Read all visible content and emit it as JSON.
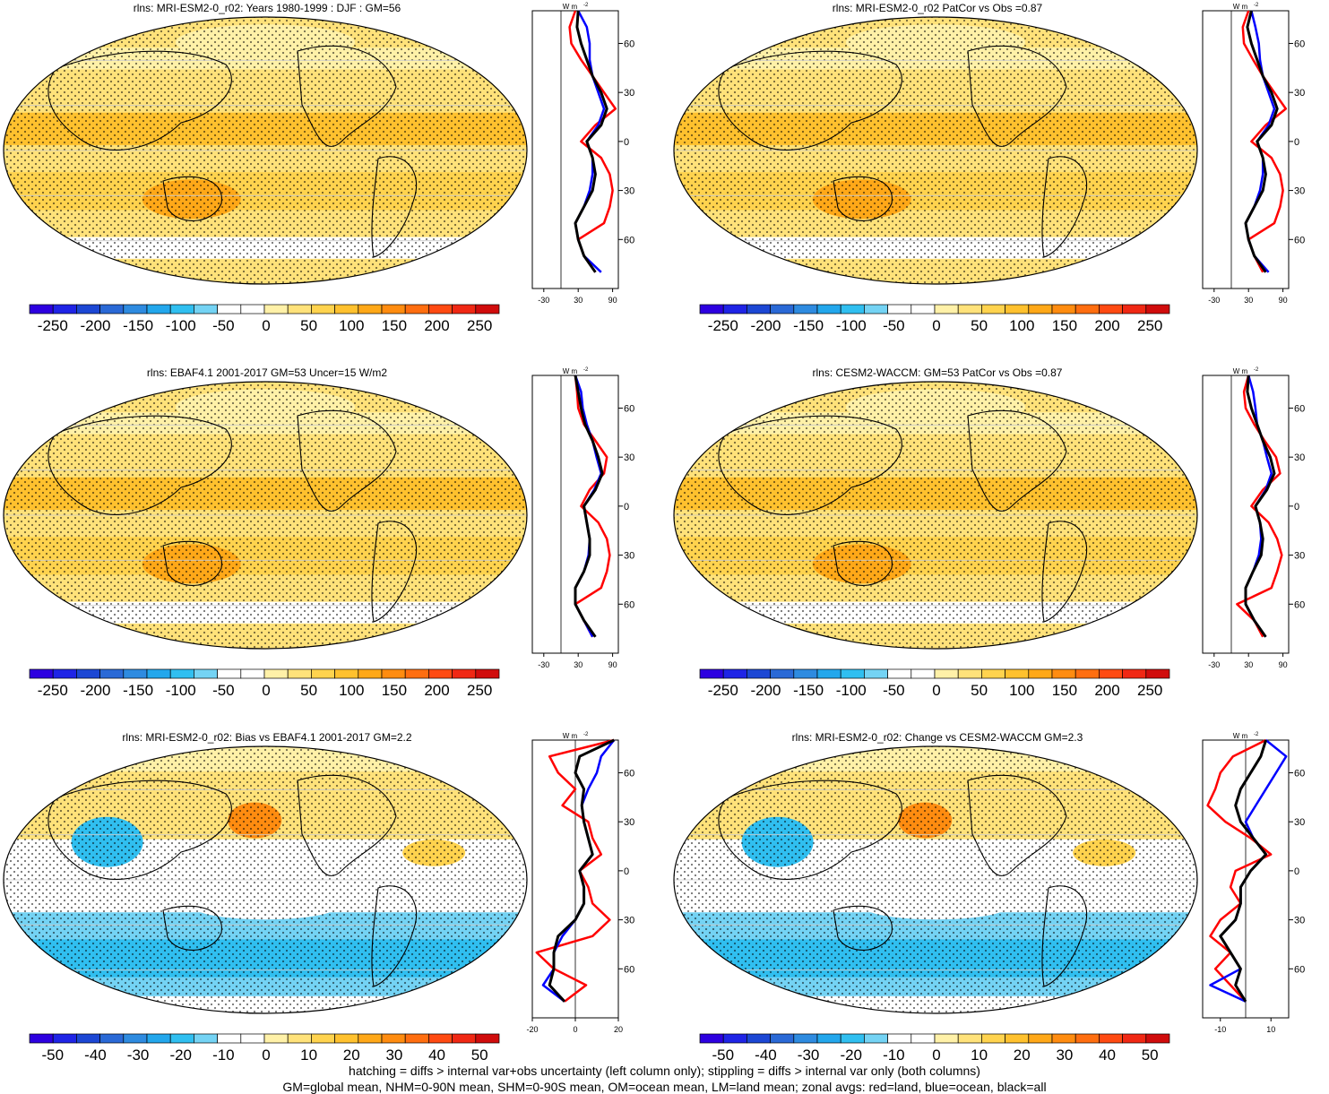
{
  "panels": [
    {
      "title": "rlns: MRI-ESM2-0_r02: Years 1980-1999 : DJF : GM=56",
      "scheme": "abs",
      "zonal_ticks": [
        "-30",
        "30",
        "90"
      ],
      "zonal_range": [
        -50,
        100
      ]
    },
    {
      "title": "rlns: MRI-ESM2-0_r02 PatCor vs Obs =0.87",
      "scheme": "abs",
      "zonal_ticks": [
        "-30",
        "30",
        "90"
      ],
      "zonal_range": [
        -50,
        100
      ]
    },
    {
      "title": "rlns: EBAF4.1 2001-2017 GM=53 Uncer=15 W/m2",
      "scheme": "abs",
      "zonal_ticks": [
        "-30",
        "30",
        "90"
      ],
      "zonal_range": [
        -50,
        100
      ]
    },
    {
      "title": "rlns: CESM2-WACCM: GM=53 PatCor vs Obs =0.87",
      "scheme": "abs",
      "zonal_ticks": [
        "-30",
        "30",
        "90"
      ],
      "zonal_range": [
        -50,
        100
      ]
    },
    {
      "title": "rlns: MRI-ESM2-0_r02: Bias vs EBAF4.1 2001-2017 GM=2.2",
      "scheme": "diff",
      "zonal_ticks": [
        "-20",
        "0",
        "20"
      ],
      "zonal_range": [
        -20,
        20
      ]
    },
    {
      "title": "rlns: MRI-ESM2-0_r02: Change vs CESM2-WACCM GM=2.3",
      "scheme": "diff",
      "zonal_ticks": [
        "-10",
        "10"
      ],
      "zonal_range": [
        -17,
        17
      ]
    }
  ],
  "zonal_units": "W m",
  "zonal_units_sup": "-2",
  "lat_labels": [
    "60N",
    "30N",
    "0",
    "30S",
    "60S"
  ],
  "colorbars": {
    "abs": {
      "labels": [
        "-250",
        "-200",
        "-150",
        "-100",
        "-50",
        "0",
        "50",
        "100",
        "150",
        "200",
        "250"
      ]
    },
    "diff": {
      "labels": [
        "-50",
        "-40",
        "-30",
        "-20",
        "-10",
        "0",
        "10",
        "20",
        "30",
        "40",
        "50"
      ]
    }
  },
  "palette": [
    "#2d00e0",
    "#1f24e6",
    "#1c47d4",
    "#2a69d6",
    "#2e8be0",
    "#23a7ec",
    "#30bff0",
    "#74d3f4",
    "#ffffff",
    "#ffffff",
    "#fff1a8",
    "#ffe27a",
    "#ffd34e",
    "#ffc12e",
    "#ffa818",
    "#ff8c10",
    "#ff6e10",
    "#ff4a12",
    "#f02814",
    "#d00c0c"
  ],
  "zonal_line_colors": {
    "land": "#ff0000",
    "ocean": "#0000ff",
    "all": "#000000"
  },
  "footer": {
    "line1": "hatching = diffs > internal var+obs uncertainty (left column only); stippling = diffs > internal var only (both columns)",
    "line2": "GM=global mean, NHM=0-90N mean, SHM=0-90S mean, OM=ocean mean, LM=land mean; zonal avgs: red=land, blue=ocean, black=all"
  },
  "chart_data": [
    {
      "type": "heatmap",
      "title": "rlns: MRI-ESM2-0_r02: Years 1980-1999 : DJF : GM=56",
      "colorbar_range": [
        -275,
        275
      ],
      "zonal_profile_lat": [
        80,
        70,
        60,
        50,
        40,
        30,
        20,
        10,
        0,
        -10,
        -20,
        -30,
        -40,
        -50,
        -60,
        -70,
        -80
      ],
      "zonal_all": [
        30,
        28,
        35,
        45,
        55,
        70,
        80,
        70,
        45,
        55,
        60,
        55,
        40,
        25,
        30,
        40,
        60
      ],
      "zonal_ocean": [
        30,
        45,
        50,
        50,
        55,
        65,
        75,
        65,
        45,
        55,
        55,
        50,
        40,
        25,
        30,
        40,
        70
      ],
      "zonal_land": [
        25,
        15,
        18,
        35,
        55,
        75,
        95,
        60,
        35,
        70,
        85,
        90,
        85,
        75,
        30,
        40,
        60
      ]
    },
    {
      "type": "heatmap",
      "title": "rlns: MRI-ESM2-0_r02 PatCor vs Obs =0.87",
      "colorbar_range": [
        -275,
        275
      ],
      "zonal_profile_lat": [
        80,
        70,
        60,
        50,
        40,
        30,
        20,
        10,
        0,
        -10,
        -20,
        -30,
        -40,
        -50,
        -60,
        -70,
        -80
      ],
      "zonal_all": [
        35,
        28,
        35,
        45,
        55,
        70,
        80,
        70,
        45,
        55,
        60,
        55,
        40,
        25,
        30,
        40,
        60
      ],
      "zonal_ocean": [
        35,
        42,
        48,
        50,
        55,
        65,
        75,
        65,
        45,
        55,
        55,
        50,
        40,
        25,
        30,
        40,
        65
      ],
      "zonal_land": [
        30,
        20,
        22,
        38,
        55,
        75,
        95,
        60,
        35,
        70,
        85,
        90,
        85,
        75,
        30,
        40,
        55
      ]
    },
    {
      "type": "heatmap",
      "title": "rlns: EBAF4.1 2001-2017 GM=53 Uncer=15 W/m2",
      "colorbar_range": [
        -275,
        275
      ],
      "zonal_profile_lat": [
        80,
        70,
        60,
        50,
        40,
        30,
        20,
        10,
        0,
        -10,
        -20,
        -30,
        -40,
        -50,
        -60,
        -70,
        -80
      ],
      "zonal_all": [
        25,
        30,
        35,
        42,
        55,
        65,
        72,
        60,
        40,
        45,
        50,
        50,
        40,
        25,
        25,
        40,
        60
      ],
      "zonal_ocean": [
        25,
        35,
        38,
        45,
        55,
        62,
        70,
        58,
        40,
        45,
        50,
        48,
        40,
        25,
        25,
        40,
        55
      ],
      "zonal_land": [
        25,
        28,
        30,
        40,
        60,
        80,
        75,
        50,
        35,
        65,
        80,
        85,
        80,
        70,
        25,
        40,
        55
      ]
    },
    {
      "type": "heatmap",
      "title": "rlns: CESM2-WACCM: GM=53 PatCor vs Obs =0.87",
      "colorbar_range": [
        -275,
        275
      ],
      "zonal_profile_lat": [
        80,
        70,
        60,
        50,
        40,
        30,
        20,
        10,
        0,
        -10,
        -20,
        -30,
        -40,
        -50,
        -60,
        -70,
        -80
      ],
      "zonal_all": [
        30,
        28,
        35,
        45,
        55,
        68,
        75,
        62,
        42,
        50,
        55,
        52,
        38,
        25,
        25,
        40,
        60
      ],
      "zonal_ocean": [
        30,
        38,
        42,
        45,
        55,
        62,
        70,
        60,
        42,
        50,
        52,
        48,
        38,
        25,
        25,
        40,
        60
      ],
      "zonal_land": [
        30,
        22,
        25,
        40,
        58,
        78,
        85,
        55,
        35,
        65,
        80,
        88,
        80,
        70,
        10,
        40,
        55
      ]
    },
    {
      "type": "heatmap",
      "title": "rlns: MRI-ESM2-0_r02: Bias vs EBAF4.1 2001-2017 GM=2.2",
      "colorbar_range": [
        -55,
        55
      ],
      "zonal_profile_lat": [
        80,
        70,
        60,
        50,
        40,
        30,
        20,
        10,
        0,
        -10,
        -20,
        -30,
        -40,
        -50,
        -60,
        -70,
        -80
      ],
      "zonal_all": [
        18,
        2,
        0,
        4,
        3,
        4,
        6,
        8,
        2,
        4,
        4,
        0,
        -8,
        -10,
        -10,
        -12,
        -5
      ],
      "zonal_ocean": [
        18,
        12,
        10,
        6,
        3,
        4,
        6,
        8,
        2,
        4,
        4,
        0,
        -6,
        -10,
        -10,
        -15,
        -5
      ],
      "zonal_land": [
        18,
        -12,
        -8,
        0,
        -6,
        6,
        8,
        12,
        2,
        6,
        8,
        16,
        8,
        -18,
        -10,
        5,
        -5
      ]
    },
    {
      "type": "heatmap",
      "title": "rlns: MRI-ESM2-0_r02: Change vs CESM2-WACCM GM=2.3",
      "colorbar_range": [
        -55,
        55
      ],
      "zonal_profile_lat": [
        80,
        70,
        60,
        50,
        40,
        30,
        20,
        10,
        0,
        -10,
        -20,
        -30,
        -40,
        -50,
        -60,
        -70,
        -80
      ],
      "zonal_all": [
        8,
        6,
        2,
        -2,
        -4,
        -2,
        3,
        8,
        2,
        -2,
        -2,
        -4,
        -10,
        -6,
        -2,
        -4,
        0
      ],
      "zonal_ocean": [
        8,
        16,
        12,
        8,
        4,
        0,
        3,
        8,
        2,
        -2,
        -2,
        -4,
        -10,
        -6,
        -2,
        -14,
        0
      ],
      "zonal_land": [
        8,
        -5,
        -10,
        -12,
        -15,
        -8,
        2,
        10,
        -4,
        -6,
        -2,
        -10,
        -14,
        -6,
        -12,
        -6,
        0
      ]
    }
  ]
}
